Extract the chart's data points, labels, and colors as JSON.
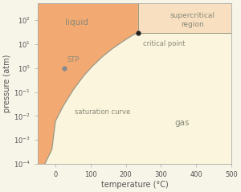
{
  "xlabel": "temperature (°C)",
  "ylabel": "pressure (atm)",
  "xlim": [
    -50,
    500
  ],
  "ylim_log": [
    -4,
    2.7
  ],
  "background_color": "#f7f4e8",
  "liquid_color": "#f2aa72",
  "supercritical_color": "#f7dfc0",
  "gas_color": "#faf5dc",
  "curve_color": "#999988",
  "label_color": "#8a8a7a",
  "critical_point": [
    235,
    30
  ],
  "stp_point": [
    25,
    1.0
  ],
  "sat_T": [
    -50,
    -30,
    -10,
    0,
    20,
    50,
    80,
    100,
    130,
    160,
    190,
    220,
    235
  ],
  "sat_P": [
    3e-05,
    0.0001,
    0.0004,
    0.006,
    0.023,
    0.12,
    0.47,
    1.0,
    2.7,
    6.2,
    12.5,
    24,
    30
  ]
}
